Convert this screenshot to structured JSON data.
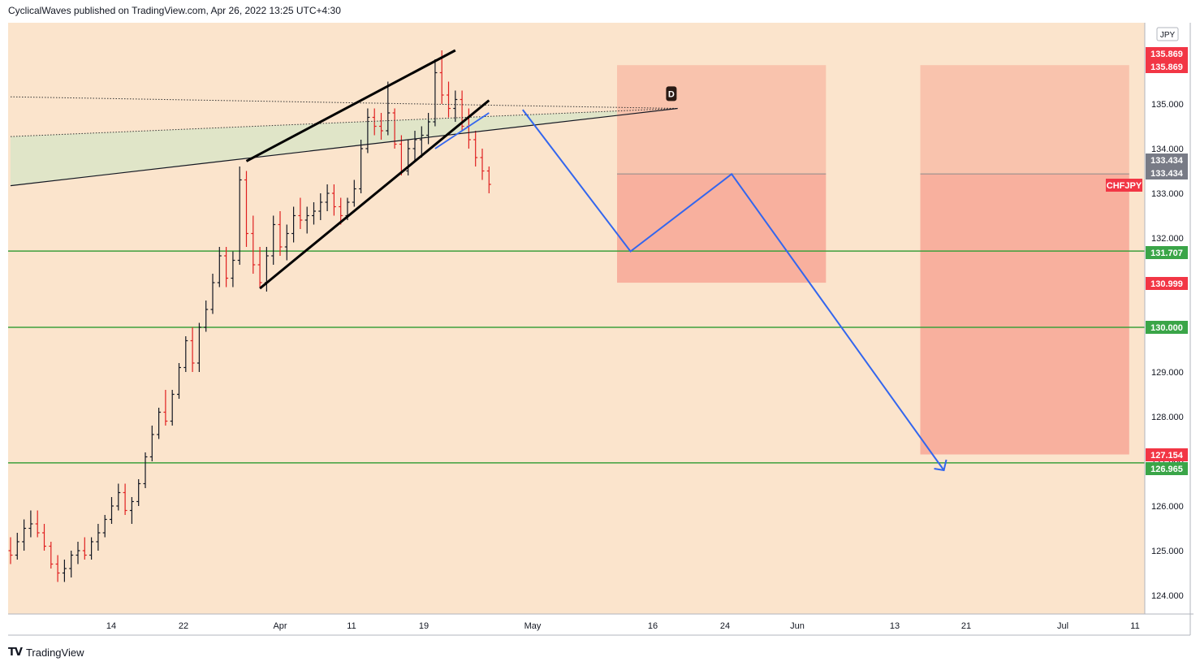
{
  "header": {
    "publisher": "CyclicalWaves published on TradingView.com, Apr 26, 2022 13:25 UTC+4:30"
  },
  "footer": {
    "brand": "TradingView",
    "logo_icon": "tradingview-logo-icon"
  },
  "colors": {
    "background": "#fbe4cc",
    "up": "#131722",
    "down": "#e02020",
    "support": "#3ca03c",
    "projection": "#3366ee",
    "zone_upper": "#f9c3ad",
    "zone_lower": "#f8b09e",
    "channel_fill": "#e0e5c8",
    "label_red": "#f23645",
    "label_green": "#3aa548",
    "label_gray": "#787b86"
  },
  "chart_data": {
    "type": "candlestick",
    "symbol": "CHFJPY",
    "currency": "JPY",
    "ylim": [
      123.7,
      136.8
    ],
    "y_ticks": [
      "124.000",
      "125.000",
      "126.000",
      "127.000",
      "128.000",
      "129.000",
      "130.000",
      "131.000",
      "132.000",
      "133.000",
      "134.000",
      "135.000"
    ],
    "x_ticks": [
      "14",
      "22",
      "Apr",
      "11",
      "19",
      "May",
      "16",
      "24",
      "Jun",
      "13",
      "21",
      "Jul",
      "11"
    ],
    "price_labels": [
      {
        "text": "135.869",
        "kind": "red"
      },
      {
        "text": "135.869",
        "kind": "red"
      },
      {
        "text": "133.434",
        "kind": "gray"
      },
      {
        "text": "133.434",
        "kind": "gray"
      },
      {
        "text": "CHFJPY",
        "kind": "red"
      },
      {
        "text": "131.707",
        "kind": "green"
      },
      {
        "text": "130.999",
        "kind": "red"
      },
      {
        "text": "130.000",
        "kind": "green"
      },
      {
        "text": "127.154",
        "kind": "red"
      },
      {
        "text": "126.965",
        "kind": "green"
      }
    ],
    "horizontal_levels": [
      131.707,
      130.0,
      126.965
    ],
    "marker": {
      "text": "D",
      "price": 135.23
    },
    "ohlc": [
      [
        125.0,
        125.3,
        124.7,
        124.9
      ],
      [
        124.9,
        125.4,
        124.8,
        125.2
      ],
      [
        125.2,
        125.7,
        125.0,
        125.5
      ],
      [
        125.5,
        125.9,
        125.3,
        125.6
      ],
      [
        125.6,
        125.9,
        125.3,
        125.4
      ],
      [
        125.4,
        125.6,
        125.0,
        125.1
      ],
      [
        125.1,
        125.2,
        124.6,
        124.7
      ],
      [
        124.7,
        124.9,
        124.3,
        124.5
      ],
      [
        124.5,
        124.8,
        124.3,
        124.6
      ],
      [
        124.6,
        125.0,
        124.4,
        124.9
      ],
      [
        124.9,
        125.2,
        124.7,
        125.0
      ],
      [
        125.0,
        125.3,
        124.8,
        124.9
      ],
      [
        124.9,
        125.3,
        124.8,
        125.2
      ],
      [
        125.2,
        125.6,
        125.0,
        125.4
      ],
      [
        125.4,
        125.8,
        125.3,
        125.7
      ],
      [
        125.7,
        126.2,
        125.6,
        126.0
      ],
      [
        126.0,
        126.5,
        125.9,
        126.3
      ],
      [
        126.3,
        126.5,
        125.8,
        125.9
      ],
      [
        125.9,
        126.2,
        125.6,
        126.1
      ],
      [
        126.1,
        126.6,
        126.0,
        126.5
      ],
      [
        126.5,
        127.2,
        126.4,
        127.1
      ],
      [
        127.1,
        127.8,
        127.0,
        127.6
      ],
      [
        127.6,
        128.2,
        127.5,
        128.1
      ],
      [
        128.1,
        128.6,
        127.8,
        127.9
      ],
      [
        127.9,
        128.6,
        127.8,
        128.5
      ],
      [
        128.5,
        129.2,
        128.4,
        129.1
      ],
      [
        129.1,
        129.8,
        129.0,
        129.7
      ],
      [
        129.7,
        130.0,
        129.0,
        129.2
      ],
      [
        129.2,
        130.1,
        129.0,
        130.0
      ],
      [
        130.0,
        130.6,
        129.9,
        130.4
      ],
      [
        130.4,
        131.2,
        130.3,
        131.0
      ],
      [
        131.0,
        131.8,
        130.9,
        131.6
      ],
      [
        131.6,
        131.8,
        130.9,
        131.1
      ],
      [
        131.1,
        131.7,
        130.9,
        131.5
      ],
      [
        131.5,
        133.6,
        131.4,
        133.3
      ],
      [
        133.3,
        133.5,
        131.8,
        132.1
      ],
      [
        132.1,
        132.5,
        131.2,
        131.4
      ],
      [
        131.4,
        131.8,
        130.9,
        131.0
      ],
      [
        131.0,
        131.8,
        130.8,
        131.6
      ],
      [
        131.6,
        132.5,
        131.4,
        132.3
      ],
      [
        132.3,
        132.6,
        131.6,
        131.8
      ],
      [
        131.8,
        132.3,
        131.5,
        132.1
      ],
      [
        132.1,
        132.7,
        131.9,
        132.5
      ],
      [
        132.5,
        132.9,
        132.2,
        132.4
      ],
      [
        132.4,
        132.7,
        132.1,
        132.5
      ],
      [
        132.5,
        132.8,
        132.3,
        132.6
      ],
      [
        132.6,
        133.0,
        132.4,
        132.8
      ],
      [
        132.8,
        133.2,
        132.6,
        133.0
      ],
      [
        133.0,
        133.2,
        132.5,
        132.7
      ],
      [
        132.7,
        132.9,
        132.3,
        132.5
      ],
      [
        132.5,
        132.9,
        132.4,
        132.8
      ],
      [
        132.8,
        133.3,
        132.7,
        133.1
      ],
      [
        133.1,
        134.2,
        133.0,
        134.0
      ],
      [
        134.0,
        134.9,
        133.9,
        134.7
      ],
      [
        134.7,
        134.9,
        134.3,
        134.5
      ],
      [
        134.5,
        134.8,
        134.2,
        134.4
      ],
      [
        134.4,
        135.5,
        134.3,
        134.8
      ],
      [
        134.8,
        134.9,
        134.0,
        134.1
      ],
      [
        134.1,
        134.3,
        133.4,
        133.5
      ],
      [
        133.5,
        134.2,
        133.4,
        134.0
      ],
      [
        134.0,
        134.4,
        133.7,
        134.2
      ],
      [
        134.2,
        134.5,
        133.8,
        134.3
      ],
      [
        134.3,
        134.8,
        134.1,
        134.6
      ],
      [
        134.6,
        136.0,
        134.5,
        135.7
      ],
      [
        135.7,
        136.2,
        135.0,
        135.2
      ],
      [
        135.2,
        135.5,
        134.7,
        134.9
      ],
      [
        134.9,
        135.3,
        134.6,
        135.1
      ],
      [
        135.1,
        135.3,
        134.4,
        134.5
      ],
      [
        134.5,
        134.9,
        134.0,
        134.2
      ],
      [
        134.2,
        134.4,
        133.6,
        133.8
      ],
      [
        133.8,
        134.0,
        133.3,
        133.5
      ],
      [
        133.5,
        133.6,
        133.0,
        133.2
      ]
    ],
    "shapes": {
      "channel_upper": [
        [
          35,
          133.72
        ],
        [
          66,
          136.2
        ]
      ],
      "channel_lower": [
        [
          37,
          130.87
        ],
        [
          71,
          135.08
        ]
      ],
      "channel_mid": [
        [
          63,
          134.0
        ],
        [
          71,
          134.8
        ]
      ],
      "triangle_top": [
        [
          0,
          135.16
        ],
        [
          99,
          134.9
        ]
      ],
      "triangle_mid": [
        [
          0,
          134.27
        ],
        [
          99,
          134.9
        ]
      ],
      "triangle_bottom": [
        [
          0,
          133.17
        ],
        [
          99,
          134.9
        ]
      ],
      "projection": [
        [
          68.5,
          133.9
        ],
        [
          76,
          134.87
        ],
        [
          92,
          131.7
        ],
        [
          107,
          133.43
        ],
        [
          138.5,
          126.8
        ]
      ]
    },
    "zones": [
      {
        "x0": 90,
        "x1": 121,
        "top": 135.869,
        "mid": 133.434,
        "bottom": 130.999
      },
      {
        "x0": 135,
        "x1": 166,
        "top": 135.869,
        "mid": 133.434,
        "bottom": 127.154
      }
    ]
  }
}
